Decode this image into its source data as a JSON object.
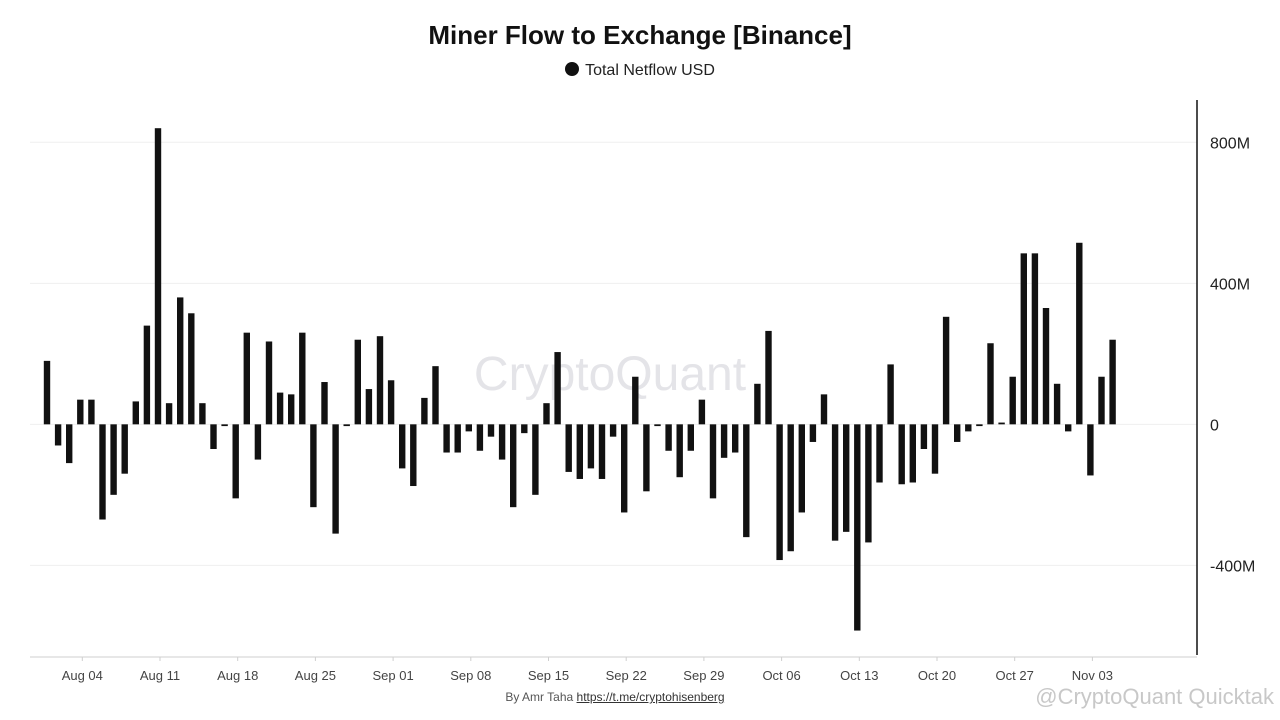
{
  "title": "Miner Flow to Exchange [Binance]",
  "legend": {
    "label": "Total Netflow USD",
    "color": "#111111"
  },
  "watermark": "CryptoQuant",
  "byline": {
    "prefix": "By Amr Taha",
    "link": "https://t.me/cryptohisenberg"
  },
  "corner_watermark": "@CryptoQuant Quicktak",
  "chart_data": {
    "type": "bar",
    "series": [
      {
        "name": "Total Netflow USD",
        "color": "#111111",
        "values": [
          180,
          -60,
          -110,
          70,
          70,
          -270,
          -200,
          -140,
          65,
          280,
          840,
          60,
          360,
          315,
          60,
          -70,
          -5,
          -210,
          260,
          -100,
          235,
          90,
          85,
          260,
          -235,
          120,
          -310,
          -5,
          240,
          100,
          250,
          125,
          -125,
          -175,
          75,
          165,
          -80,
          -80,
          -20,
          -75,
          -35,
          -100,
          -235,
          -25,
          -200,
          60,
          205,
          -135,
          -155,
          -125,
          -155,
          -35,
          -250,
          135,
          -190,
          -5,
          -75,
          -150,
          -75,
          70,
          -210,
          -95,
          -80,
          -320,
          115,
          265,
          -385,
          -360,
          -250,
          -50,
          85,
          -330,
          -305,
          -585,
          -335,
          -165,
          170,
          -170,
          -165,
          -70,
          -140,
          305,
          -50,
          -20,
          -5,
          230,
          5,
          135,
          485,
          485,
          330,
          115,
          -20,
          515,
          -145,
          135,
          240
        ]
      }
    ],
    "x_ticks": [
      {
        "label": "Aug 04",
        "index": 3
      },
      {
        "label": "Aug 11",
        "index": 10
      },
      {
        "label": "Aug 18",
        "index": 17
      },
      {
        "label": "Aug 25",
        "index": 24
      },
      {
        "label": "Sep 01",
        "index": 31
      },
      {
        "label": "Sep 08",
        "index": 38
      },
      {
        "label": "Sep 15",
        "index": 45
      },
      {
        "label": "Sep 22",
        "index": 52
      },
      {
        "label": "Sep 29",
        "index": 59
      },
      {
        "label": "Oct 06",
        "index": 66
      },
      {
        "label": "Oct 13",
        "index": 73
      },
      {
        "label": "Oct 20",
        "index": 80
      },
      {
        "label": "Oct 27",
        "index": 87
      },
      {
        "label": "Nov 03",
        "index": 94
      }
    ],
    "y_ticks": [
      {
        "label": "800M",
        "value": 800
      },
      {
        "label": "400M",
        "value": 400
      },
      {
        "label": "0",
        "value": 0
      },
      {
        "label": "-400M",
        "value": -400
      }
    ],
    "ylim": [
      -660,
      920
    ],
    "y_axis_position": "right",
    "grid": true
  }
}
